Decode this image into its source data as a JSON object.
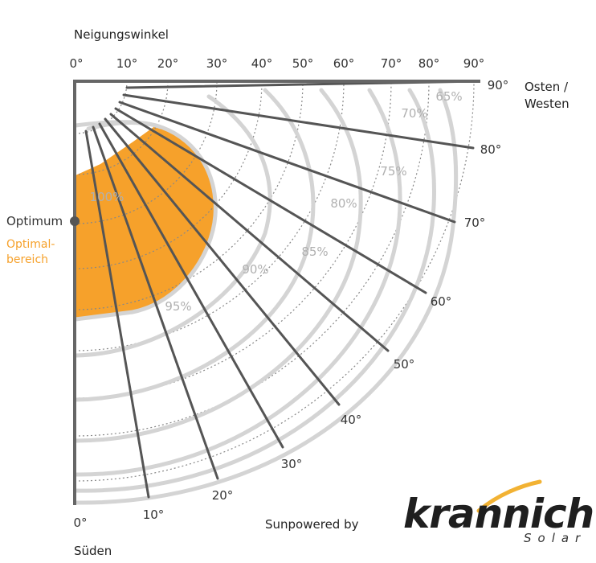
{
  "tilt_axis": {
    "title": "Neigungswinkel",
    "ticks": [
      {
        "deg": 0,
        "label": "0°"
      },
      {
        "deg": 10,
        "label": "10°"
      },
      {
        "deg": 20,
        "label": "20°"
      },
      {
        "deg": 30,
        "label": "30°"
      },
      {
        "deg": 40,
        "label": "40°"
      },
      {
        "deg": 50,
        "label": "50°"
      },
      {
        "deg": 60,
        "label": "60°"
      },
      {
        "deg": 70,
        "label": "70°"
      },
      {
        "deg": 80,
        "label": "80°"
      },
      {
        "deg": 90,
        "label": "90°"
      }
    ]
  },
  "orientation": {
    "south_label": "Süden",
    "east_west_label_line1": "Osten /",
    "east_west_label_line2": "Westen",
    "ticks": [
      {
        "deg": 0,
        "label": "0°"
      },
      {
        "deg": 10,
        "label": "10°"
      },
      {
        "deg": 20,
        "label": "20°"
      },
      {
        "deg": 30,
        "label": "30°"
      },
      {
        "deg": 40,
        "label": "40°"
      },
      {
        "deg": 50,
        "label": "50°"
      },
      {
        "deg": 60,
        "label": "60°"
      },
      {
        "deg": 70,
        "label": "70°"
      },
      {
        "deg": 80,
        "label": "80°"
      },
      {
        "deg": 90,
        "label": "90°"
      }
    ]
  },
  "yield_contours": [
    {
      "value": 100,
      "label": "100%"
    },
    {
      "value": 95,
      "label": "95%"
    },
    {
      "value": 90,
      "label": "90%"
    },
    {
      "value": 85,
      "label": "85%"
    },
    {
      "value": 80,
      "label": "80%"
    },
    {
      "value": 75,
      "label": "75%"
    },
    {
      "value": 70,
      "label": "70%"
    },
    {
      "value": 65,
      "label": "65%"
    }
  ],
  "optimum": {
    "label": "Optimum",
    "range_label_line1": "Optimal-",
    "range_label_line2": "bereich"
  },
  "branding": {
    "prefix": "Sunpowered by",
    "name": "krannich",
    "sub": "Solar"
  },
  "colors": {
    "optimal_area": "#f6a12b",
    "contour": "#d4d4d4",
    "spoke": "#555555",
    "axis": "#666666",
    "brand_swoosh": "#f2b233"
  }
}
